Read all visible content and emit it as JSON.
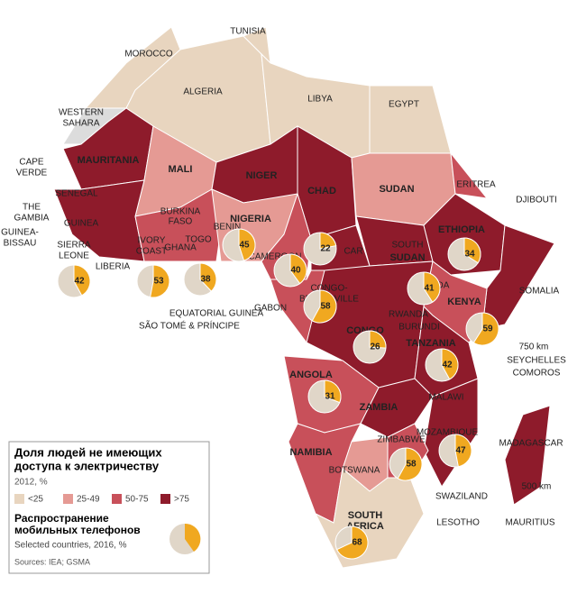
{
  "legend": {
    "title": [
      "Доля людей не имеющих",
      "доступа к электричеству"
    ],
    "subtitle": "2012, %",
    "items": [
      {
        "label": "<25",
        "color": "#e8d5bf"
      },
      {
        "label": "25-49",
        "color": "#e59a94"
      },
      {
        "label": "50-75",
        "color": "#c8505a"
      },
      {
        "label": ">75",
        "color": "#8e1b2b"
      }
    ],
    "pie_title": [
      "Распространение",
      "мобильных телефонов"
    ],
    "pie_subtitle": "Selected countries, 2016, %",
    "sources": "Sources: IEA; GSMA"
  },
  "labels": [
    "MOROCCO",
    "TUNISIA",
    "ALGERIA",
    "LIBYA",
    "EGYPT",
    "WESTERN",
    "SAHARA",
    "MAURITANIA",
    "MALI",
    "NIGER",
    "CHAD",
    "SUDAN",
    "ERITREA",
    "DJIBOUTI",
    "CAPE",
    "VERDE",
    "THE",
    "GAMBIA",
    "SENEGAL",
    "GUINEA-",
    "BISSAU",
    "GUINEA",
    "SIERRA",
    "LEONE",
    "LIBERIA",
    "IVORY",
    "COAST",
    "BURKINA",
    "FASO",
    "GHANA",
    "TOGO",
    "BENIN",
    "NIGERIA",
    "CAMEROON",
    "CAR",
    "SOUTH",
    "SUDAN",
    "ETHIOPIA",
    "SOMALIA",
    "KENYA",
    "UGANDA",
    "RWANDA",
    "BURUNDI",
    "CONGO",
    "CONGO-",
    "BRAZZAVILLE",
    "GABON",
    "EQUATORIAL GUINEA",
    "SÃO TOMÉ & PRÍNCIPE",
    "TANZANIA",
    "ANGOLA",
    "ZAMBIA",
    "MALAWI",
    "MOZAMBIQUE",
    "ZIMBABWE",
    "NAMIBIA",
    "BOTSWANA",
    "SOUTH",
    "AFRICA",
    "SWAZILAND",
    "LESOTHO",
    "MADAGASCAR",
    "SEYCHELLES",
    "COMOROS",
    "MAURITIUS",
    "750 km",
    "500 km"
  ],
  "pies": [
    42,
    53,
    38,
    45,
    40,
    22,
    58,
    26,
    41,
    34,
    59,
    42,
    31,
    58,
    47,
    68
  ]
}
